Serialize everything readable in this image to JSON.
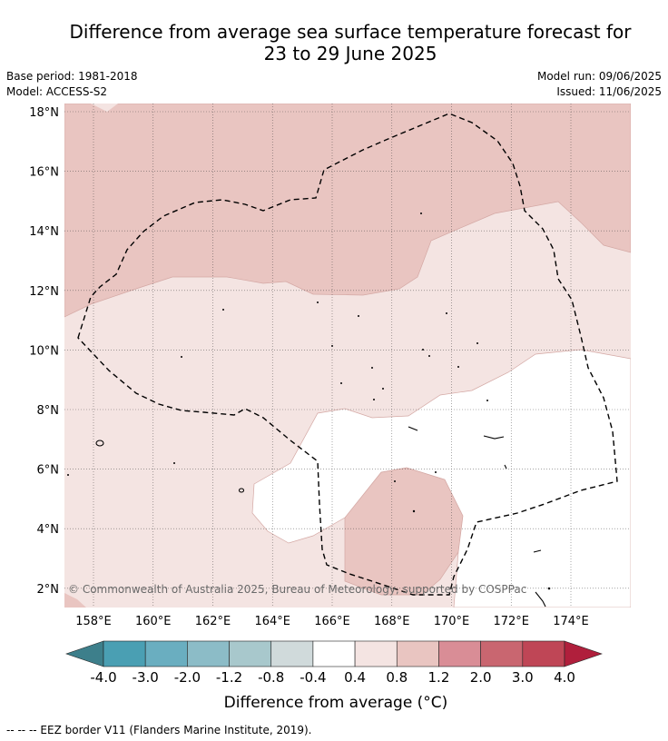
{
  "title": {
    "line1": "Difference from average sea surface temperature forecast for",
    "line2": "23 to 29 June 2025"
  },
  "meta": {
    "base_period": "Base period: 1981-2018",
    "model": "Model: ACCESS-S2",
    "model_run": "Model run: 09/06/2025",
    "issued": "Issued: 11/06/2025"
  },
  "map": {
    "lon_labels": [
      "158°E",
      "160°E",
      "162°E",
      "164°E",
      "166°E",
      "168°E",
      "170°E",
      "172°E",
      "174°E"
    ],
    "lat_labels": [
      "18°N",
      "16°N",
      "14°N",
      "12°N",
      "10°N",
      "8°N",
      "6°N",
      "4°N",
      "2°N"
    ],
    "copyright": "© Commonwealth of Australia 2025, Bureau of Meteorology, supported by COSPPac"
  },
  "colorbar": {
    "ticks": [
      "-4.0",
      "-3.0",
      "-2.0",
      "-1.2",
      "-0.8",
      "-0.4",
      "0.4",
      "0.8",
      "1.2",
      "2.0",
      "3.0",
      "4.0"
    ],
    "colors": [
      "#4a9fb3",
      "#6aaec0",
      "#8cbcc7",
      "#a8c8cc",
      "#d0dadb",
      "#ffffff",
      "#f4e4e2",
      "#e9c5c1",
      "#d98d96",
      "#c96670",
      "#bf4656"
    ],
    "low_color": "#3d7f8b",
    "high_color": "#b01f3c",
    "label": "Difference from average (°C)"
  },
  "footer": "--  --  -- EEZ border V11 (Flanders Marine Institute, 2019)."
}
